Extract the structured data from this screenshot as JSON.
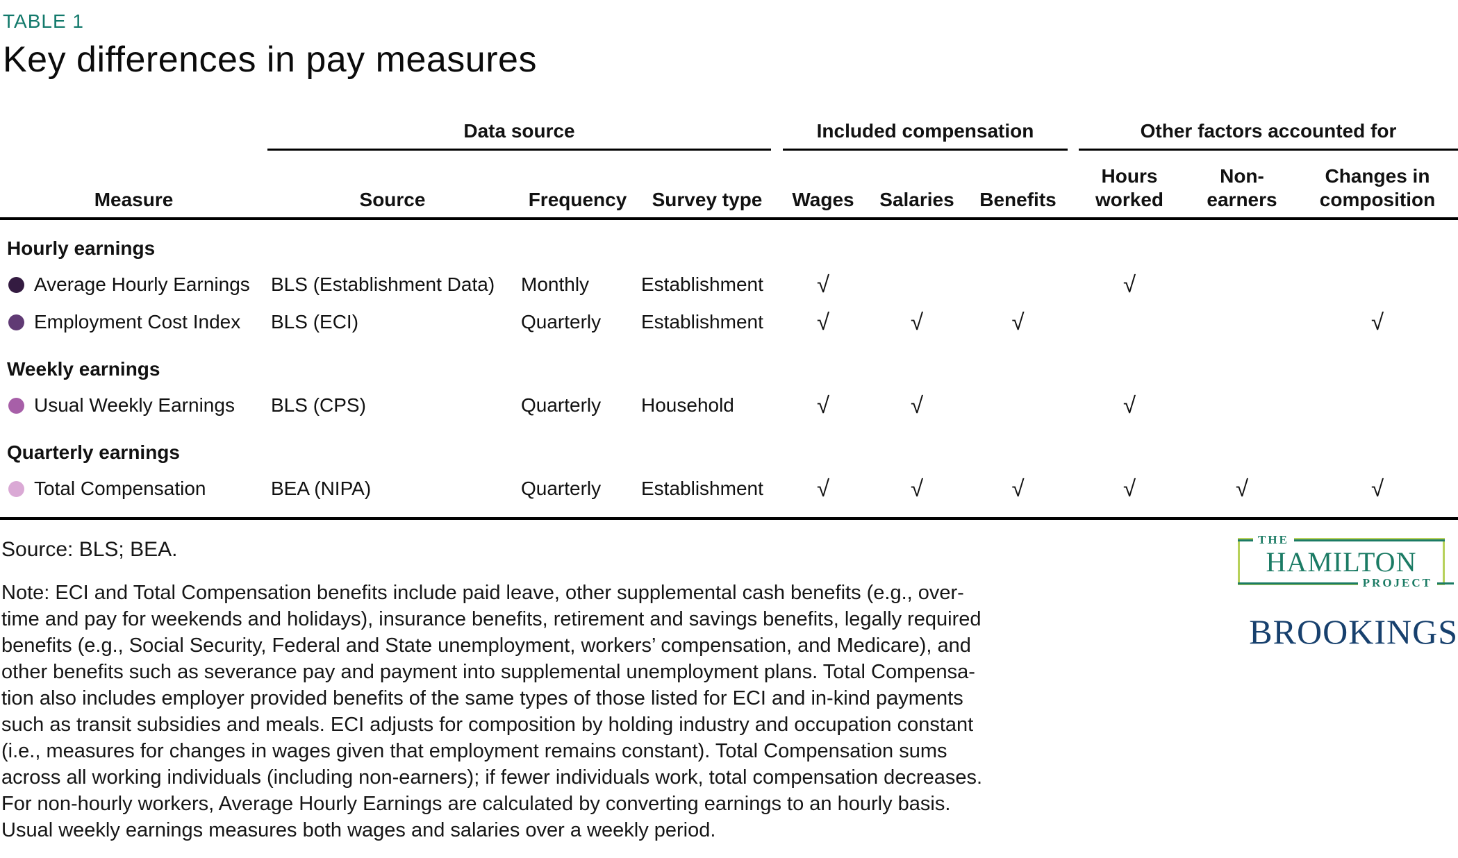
{
  "colors": {
    "accent-teal": "#12796b",
    "hamilton-green": "#1b7b64",
    "hamilton-border": "#b7d15a",
    "brookings-navy": "#17406d",
    "text": "#111111",
    "dot-average-hourly-earnings": "#341b41",
    "dot-employment-cost-index": "#603a74",
    "dot-usual-weekly-earnings": "#a75fa8",
    "dot-total-compensation": "#daa9d5"
  },
  "table_label": "TABLE 1",
  "title": "Key differences in pay measures",
  "checkmark": "√",
  "header": {
    "measure": "Measure",
    "groups": [
      {
        "label": "Data source",
        "cols": [
          "Source",
          "Frequency",
          "Survey type"
        ]
      },
      {
        "label": "Included compensation",
        "cols": [
          "Wages",
          "Salaries",
          "Benefits"
        ]
      },
      {
        "label": "Other factors accounted for",
        "cols": [
          "Hours\nworked",
          "Non-\nearners",
          "Changes in\ncomposition"
        ]
      }
    ]
  },
  "sections": [
    {
      "label": "Hourly earnings",
      "rows": [
        {
          "measure": "Average Hourly Earnings",
          "dot": "#341b41",
          "source": "BLS (Establishment Data)",
          "frequency": "Monthly",
          "survey": "Establishment",
          "checks": [
            true,
            false,
            false,
            true,
            false,
            false
          ]
        },
        {
          "measure": "Employment Cost Index",
          "dot": "#603a74",
          "source": "BLS (ECI)",
          "frequency": "Quarterly",
          "survey": "Establishment",
          "checks": [
            true,
            true,
            true,
            false,
            false,
            true
          ]
        }
      ]
    },
    {
      "label": "Weekly earnings",
      "rows": [
        {
          "measure": "Usual Weekly Earnings",
          "dot": "#a75fa8",
          "source": "BLS (CPS)",
          "frequency": "Quarterly",
          "survey": "Household",
          "checks": [
            true,
            true,
            false,
            true,
            false,
            false
          ]
        }
      ]
    },
    {
      "label": "Quarterly earnings",
      "rows": [
        {
          "measure": "Total Compensation",
          "dot": "#daa9d5",
          "source": "BEA (NIPA)",
          "frequency": "Quarterly",
          "survey": "Establishment",
          "checks": [
            true,
            true,
            true,
            true,
            true,
            true
          ]
        }
      ]
    }
  ],
  "footer": {
    "source_line": "Source: BLS; BEA.",
    "note": "Note: ECI and Total Compensation benefits include paid leave, other supplemental cash benefits (e.g., over-\ntime and pay for weekends and holidays), insurance benefits, retirement and savings benefits, legally required\nbenefits (e.g., Social Security, Federal and State unemployment, workers’ compensation, and Medicare), and\nother benefits such as severance pay and payment into supplemental unemployment plans. Total Compensa-\ntion also includes employer provided benefits of the same types of those listed for ECI and in-kind payments\nsuch as transit subsidies and meals. ECI adjusts for composition by holding industry and occupation constant\n(i.e., measures for changes in wages given that employment remains constant). Total Compensation sums\nacross all working individuals (including non-earners); if fewer individuals work, total compensation decreases.\nFor non-hourly workers, Average Hourly Earnings are calculated by converting earnings to an hourly basis.\nUsual weekly earnings measures both wages and salaries over a weekly period."
  },
  "logos": {
    "hamilton_the": "THE",
    "hamilton_name": "HAMILTON",
    "hamilton_project": "PROJECT",
    "brookings": "BROOKINGS"
  }
}
